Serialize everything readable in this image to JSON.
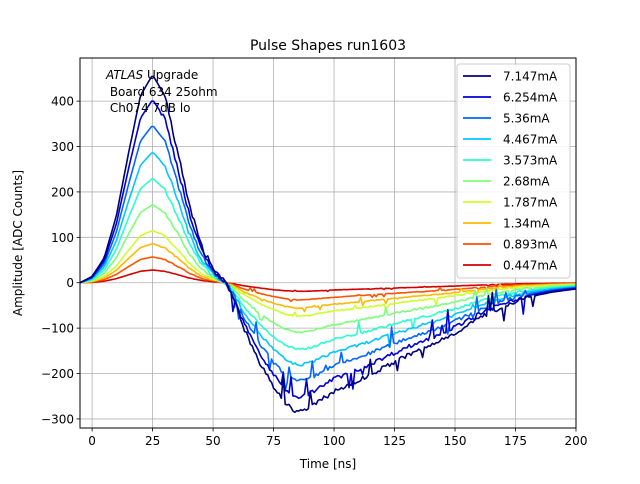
{
  "chart_data": {
    "type": "line",
    "title": "Pulse Shapes run1603",
    "xlabel": "Time [ns]",
    "ylabel": "Amplitude [ADC Counts]",
    "xlim": [
      -5,
      200
    ],
    "ylim": [
      -320,
      495
    ],
    "xticks": [
      0,
      25,
      50,
      75,
      100,
      125,
      150,
      175,
      200
    ],
    "yticks": [
      -300,
      -200,
      -100,
      0,
      100,
      200,
      300,
      400
    ],
    "xtick_labels": [
      "0",
      "25",
      "50",
      "75",
      "100",
      "125",
      "150",
      "175",
      "200"
    ],
    "ytick_labels": [
      "−300",
      "−200",
      "−100",
      "0",
      "100",
      "200",
      "300",
      "400"
    ],
    "grid": true,
    "legend_position": "top-right",
    "annotation": {
      "line1_italic": "ATLAS",
      "line1_rest": " Upgrade",
      "line2": " Board 634 25ohm",
      "line3": " Ch074 7dB lo"
    },
    "shape_x": [
      -5,
      0,
      5,
      10,
      15,
      20,
      25,
      30,
      35,
      40,
      45,
      50,
      52,
      55,
      58,
      62,
      66,
      70,
      75,
      80,
      85,
      90,
      95,
      100,
      110,
      120,
      130,
      140,
      150,
      160,
      170,
      180,
      190,
      200
    ],
    "shape_y": [
      0,
      0.03,
      0.12,
      0.32,
      0.62,
      0.9,
      1.0,
      0.9,
      0.65,
      0.38,
      0.18,
      0.07,
      0.04,
      0,
      -0.06,
      -0.2,
      -0.3,
      -0.4,
      -0.5,
      -0.58,
      -0.62,
      -0.6,
      -0.56,
      -0.52,
      -0.47,
      -0.41,
      -0.35,
      -0.3,
      -0.24,
      -0.17,
      -0.11,
      -0.07,
      -0.045,
      -0.03
    ],
    "series": [
      {
        "name": "7.147mA",
        "color": "#00007f",
        "peak": 458,
        "trough": -285
      },
      {
        "name": "6.254mA",
        "color": "#0000d4",
        "peak": 403,
        "trough": -252
      },
      {
        "name": "5.36mA",
        "color": "#0068ff",
        "peak": 347,
        "trough": -218
      },
      {
        "name": "4.467mA",
        "color": "#00c8ff",
        "peak": 288,
        "trough": -182
      },
      {
        "name": "3.573mA",
        "color": "#29ffce",
        "peak": 230,
        "trough": -148
      },
      {
        "name": "2.68mA",
        "color": "#7dff7a",
        "peak": 172,
        "trough": -110
      },
      {
        "name": "1.787mA",
        "color": "#ceff29",
        "peak": 115,
        "trough": -74
      },
      {
        "name": "1.34mA",
        "color": "#ffb900",
        "peak": 86,
        "trough": -56
      },
      {
        "name": "0.893mA",
        "color": "#ff5300",
        "peak": 57,
        "trough": -38
      },
      {
        "name": "0.447mA",
        "color": "#d40000",
        "peak": 28,
        "trough": -19
      }
    ]
  }
}
